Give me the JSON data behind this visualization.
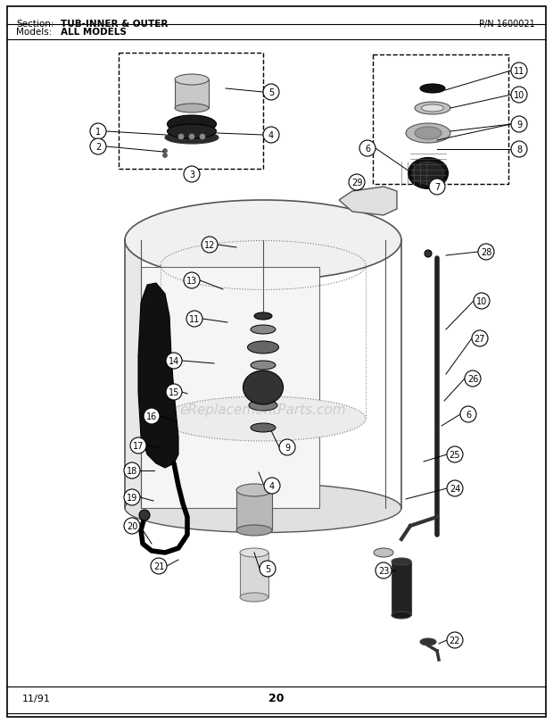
{
  "title_section": "Section:",
  "title_name": "TUB-INNER & OUTER",
  "pn_label": "P/N 1600021",
  "models_label": "Models:",
  "models_value": "ALL MODELS",
  "page_number": "20",
  "footer_date": "11/91",
  "bg_color": "#ffffff",
  "border_color": "#000000",
  "text_color": "#000000",
  "watermark_text": "eReplacementParts.com",
  "watermark_alpha": 0.3,
  "figsize": [
    6.2,
    8.12
  ],
  "dpi": 100
}
